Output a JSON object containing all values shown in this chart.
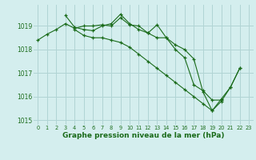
{
  "title": "Graphe pression niveau de la mer (hPa)",
  "background_color": "#d4eeee",
  "grid_color": "#b0d4d4",
  "line_color": "#1a6b1a",
  "marker_color": "#1a6b1a",
  "xlim": [
    -0.5,
    23.5
  ],
  "ylim": [
    1014.8,
    1019.9
  ],
  "yticks": [
    1015,
    1016,
    1017,
    1018,
    1019
  ],
  "xticks": [
    0,
    1,
    2,
    3,
    4,
    5,
    6,
    7,
    8,
    9,
    10,
    11,
    12,
    13,
    14,
    15,
    16,
    17,
    18,
    19,
    20,
    21,
    22,
    23
  ],
  "series": [
    [
      1018.4,
      1018.65,
      1018.85,
      1019.1,
      1018.9,
      1019.0,
      1019.0,
      1019.05,
      1019.0,
      1019.35,
      1019.05,
      1019.0,
      1018.7,
      1018.5,
      1018.5,
      1018.2,
      1018.0,
      1017.6,
      1016.2,
      1015.4,
      1015.8,
      1016.4,
      1017.2,
      null
    ],
    [
      null,
      null,
      null,
      1019.45,
      1018.95,
      1018.85,
      1018.8,
      1019.0,
      1019.1,
      1019.5,
      1019.1,
      1018.85,
      1018.7,
      1019.05,
      1018.5,
      1018.0,
      1017.65,
      1016.5,
      1016.25,
      1015.85,
      1015.85,
      null,
      null,
      null
    ],
    [
      null,
      null,
      null,
      null,
      1018.85,
      1018.6,
      1018.5,
      1018.5,
      1018.4,
      1018.3,
      1018.1,
      1017.8,
      1017.5,
      1017.2,
      1016.9,
      1016.6,
      1016.3,
      1016.0,
      1015.7,
      1015.4,
      1015.9,
      1016.4,
      1017.2,
      null
    ]
  ],
  "tick_fontsize": 5.5,
  "xlabel_fontsize": 6.5
}
